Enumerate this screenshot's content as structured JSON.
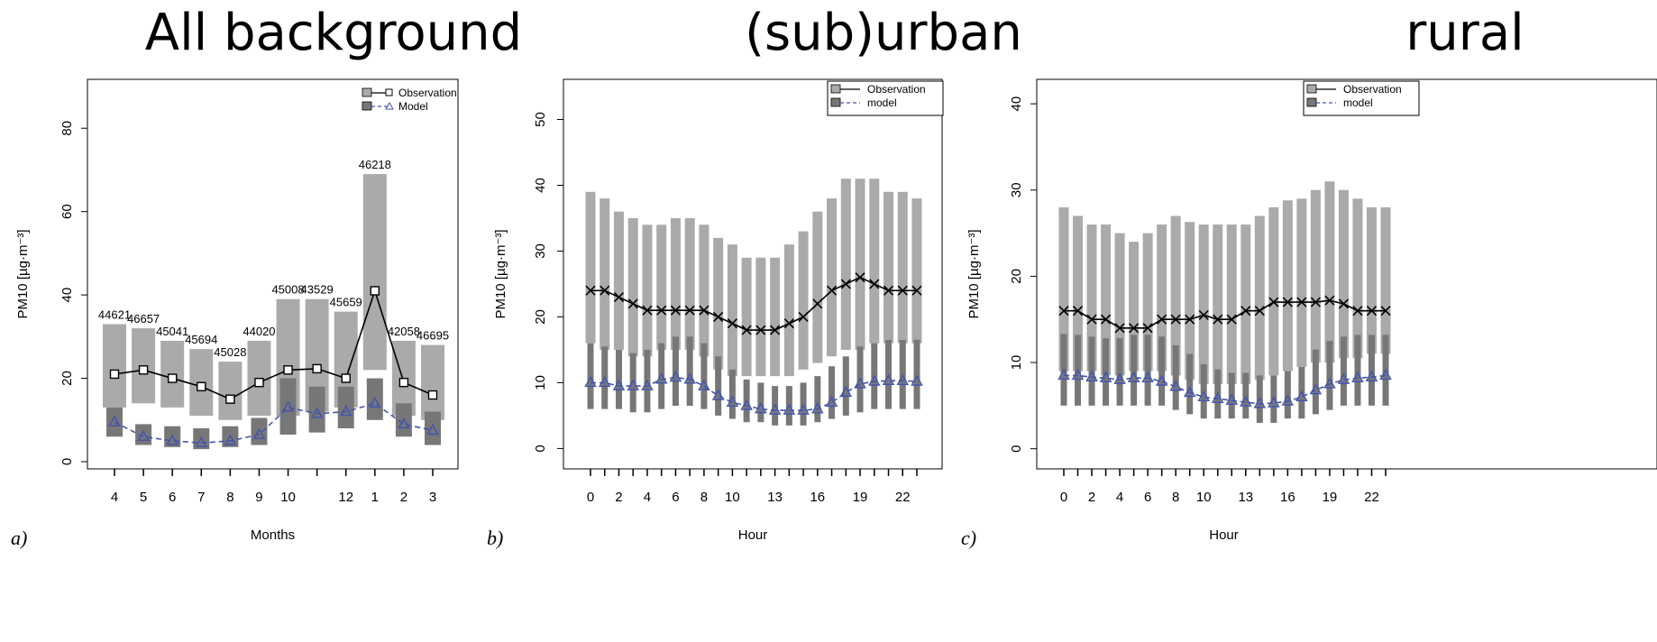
{
  "titles": [
    "All background",
    "(sub)urban",
    "rural"
  ],
  "chart_data": [
    {
      "type": "bar",
      "panel_label": "a)",
      "xlabel": "Months",
      "ylabel": "PM10 [µg·m⁻³]",
      "ylim": [
        0,
        90
      ],
      "yticks": [
        0,
        20,
        40,
        60,
        80
      ],
      "categories": [
        "4",
        "5",
        "6",
        "7",
        "8",
        "9",
        "10",
        "11",
        "12",
        "1",
        "2",
        "3"
      ],
      "xtick_labels": [
        "4",
        "5",
        "6",
        "7",
        "8",
        "9",
        "10",
        "",
        "12",
        "1",
        "2",
        "3"
      ],
      "legend": [
        "Observation",
        "Model"
      ],
      "legend_position": "top-right",
      "grid": false,
      "series": [
        {
          "name": "Observation",
          "kind": "range",
          "low": [
            13,
            14,
            13,
            11,
            10,
            11,
            11,
            12,
            13,
            22,
            11,
            10
          ],
          "high": [
            33,
            32,
            29,
            27,
            24,
            29,
            39,
            39,
            36,
            69,
            29,
            28
          ]
        },
        {
          "name": "Observation",
          "kind": "line",
          "marker": "square",
          "values": [
            21,
            22,
            20,
            18,
            15,
            19,
            22,
            22.3,
            20,
            41,
            19,
            16
          ]
        },
        {
          "name": "Model",
          "kind": "range",
          "low": [
            6,
            4,
            3.5,
            3,
            3.5,
            4,
            6.5,
            7,
            8,
            10,
            6,
            4
          ],
          "high": [
            13,
            9,
            8.5,
            8,
            8.5,
            10.5,
            20,
            18,
            18,
            20,
            14,
            12
          ]
        },
        {
          "name": "Model",
          "kind": "line",
          "marker": "triangle",
          "values": [
            9.5,
            6,
            5,
            4.5,
            5,
            6.5,
            13,
            11.5,
            12,
            14,
            9,
            7.5
          ]
        }
      ],
      "annotations": [
        "44621",
        "46657",
        "45041",
        "45694",
        "45028",
        "44020",
        "45008",
        "43529",
        "45659",
        "46218",
        "42058",
        "46695"
      ]
    },
    {
      "type": "bar",
      "panel_label": "b)",
      "xlabel": "Hour",
      "ylabel": "PM10 [µg·m⁻³]",
      "ylim": [
        -2,
        55
      ],
      "yticks": [
        0,
        10,
        20,
        30,
        40,
        50
      ],
      "categories": [
        0,
        1,
        2,
        3,
        4,
        5,
        6,
        7,
        8,
        9,
        10,
        11,
        12,
        13,
        14,
        15,
        16,
        17,
        18,
        19,
        20,
        21,
        22,
        23
      ],
      "xtick_labels": [
        "0",
        "",
        "2",
        "",
        "4",
        "",
        "6",
        "",
        "8",
        "",
        "10",
        "",
        "",
        "13",
        "",
        "",
        "16",
        "",
        "",
        "19",
        "",
        "",
        "22",
        ""
      ],
      "legend": [
        "Observation",
        "model"
      ],
      "legend_position": "top-right",
      "grid": false,
      "series": [
        {
          "name": "Observation",
          "kind": "range",
          "low": [
            16,
            15,
            15,
            14,
            14,
            15,
            15,
            15,
            14,
            12,
            11,
            11,
            11,
            11,
            11,
            12,
            13,
            14,
            15,
            15,
            16,
            16,
            16,
            16
          ],
          "high": [
            39,
            38,
            36,
            35,
            34,
            34,
            35,
            35,
            34,
            32,
            31,
            29,
            29,
            29,
            31,
            33,
            36,
            38,
            41,
            41,
            41,
            39,
            39,
            38
          ]
        },
        {
          "name": "Observation",
          "kind": "line",
          "marker": "x",
          "values": [
            24,
            24,
            23,
            22,
            21,
            21,
            21,
            21,
            21,
            20,
            19,
            18,
            18,
            18,
            19,
            20,
            22,
            24,
            25,
            26,
            25,
            24,
            24,
            24
          ]
        },
        {
          "name": "model",
          "kind": "range",
          "low": [
            6,
            6,
            6,
            5.5,
            5.5,
            6,
            6.5,
            6.5,
            6,
            5,
            4.5,
            4,
            4,
            3.5,
            3.5,
            3.5,
            4,
            4.5,
            5,
            5.5,
            6,
            6,
            6,
            6
          ],
          "high": [
            16,
            15.5,
            15,
            14.5,
            15,
            16,
            17,
            17,
            16,
            14,
            12,
            10.5,
            10,
            9.5,
            9.5,
            10,
            11,
            12.5,
            14,
            15.5,
            16,
            16.5,
            16.5,
            16.5
          ]
        },
        {
          "name": "model",
          "kind": "line",
          "marker": "triangle",
          "values": [
            10,
            10,
            9.5,
            9.5,
            9.5,
            10.5,
            10.8,
            10.5,
            9.5,
            8,
            7,
            6.5,
            6,
            5.8,
            5.8,
            5.8,
            6,
            7,
            8.5,
            9.8,
            10.2,
            10.3,
            10.3,
            10.2
          ]
        }
      ]
    },
    {
      "type": "bar",
      "panel_label": "c)",
      "xlabel": "Hour",
      "ylabel": "PM10 [µg·m⁻³]",
      "ylim": [
        -1.5,
        42
      ],
      "yticks": [
        0,
        10,
        20,
        30,
        40
      ],
      "categories": [
        0,
        1,
        2,
        3,
        4,
        5,
        6,
        7,
        8,
        9,
        10,
        11,
        12,
        13,
        14,
        15,
        16,
        17,
        18,
        19,
        20,
        21,
        22,
        23
      ],
      "xtick_labels": [
        "0",
        "",
        "2",
        "",
        "4",
        "",
        "6",
        "",
        "8",
        "",
        "10",
        "",
        "",
        "13",
        "",
        "",
        "16",
        "",
        "",
        "19",
        "",
        "",
        "22",
        ""
      ],
      "legend": [
        "Observation",
        "model"
      ],
      "legend_position": "top-right",
      "grid": false,
      "series": [
        {
          "name": "Observation",
          "kind": "range",
          "low": [
            9,
            9,
            9,
            8.5,
            8.5,
            9,
            9,
            9,
            8.5,
            8,
            7.5,
            7.5,
            7.5,
            7.5,
            8,
            8.5,
            9,
            9.5,
            10,
            10,
            10.5,
            10.5,
            11,
            11
          ],
          "high": [
            28,
            27,
            26,
            26,
            25,
            24,
            25,
            26,
            27,
            26.3,
            26,
            26,
            26,
            26,
            27,
            28,
            28.8,
            29,
            30,
            31,
            30,
            29,
            28,
            28
          ]
        },
        {
          "name": "Observation",
          "kind": "line",
          "marker": "x",
          "values": [
            16,
            16,
            15,
            15,
            14,
            14,
            14,
            15,
            15,
            15,
            15.5,
            15,
            15,
            16,
            16,
            17,
            17,
            17,
            17,
            17.2,
            16.8,
            16,
            16,
            16
          ]
        },
        {
          "name": "model",
          "kind": "range",
          "low": [
            5,
            5,
            5,
            5,
            5,
            5,
            5,
            5,
            4.5,
            4,
            3.5,
            3.5,
            3.5,
            3.5,
            3,
            3,
            3.5,
            3.5,
            4,
            4.5,
            5,
            5,
            5,
            5
          ],
          "high": [
            13.3,
            13.2,
            13,
            12.8,
            12.8,
            13.2,
            13.2,
            13,
            12,
            11,
            9.8,
            9.2,
            8.8,
            8.8,
            8.5,
            8.5,
            9,
            9.5,
            11.5,
            12.5,
            13,
            13.2,
            13.2,
            13.2
          ]
        },
        {
          "name": "model",
          "kind": "line",
          "marker": "triangle",
          "values": [
            8.5,
            8.5,
            8.3,
            8.2,
            8,
            8.2,
            8.2,
            7.8,
            7.2,
            6.5,
            6,
            5.8,
            5.6,
            5.4,
            5.2,
            5.3,
            5.5,
            6,
            6.8,
            7.5,
            8,
            8.2,
            8.3,
            8.5
          ]
        }
      ]
    }
  ],
  "colors": {
    "obs_range": "#aaaaaa",
    "model_range": "#777777",
    "obs_line": "#000000",
    "model_line": "#4455aa"
  }
}
